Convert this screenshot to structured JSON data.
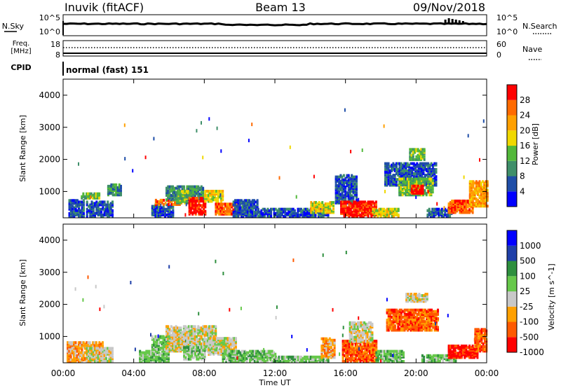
{
  "header": {
    "station": "Inuvik (fitACF)",
    "beam": "Beam 13",
    "date": "09/Nov/2018"
  },
  "colors": {
    "power": [
      "#0000ff",
      "#1f4ea8",
      "#3f8f6a",
      "#52b83a",
      "#f0d800",
      "#ffa000",
      "#ff6a00",
      "#ff0000"
    ],
    "velocity": [
      "#ff0000",
      "#ff5a00",
      "#ffa000",
      "#c8c8c8",
      "#66c84a",
      "#2e8f3e",
      "#1f3fa8",
      "#0000ff"
    ]
  },
  "panels": {
    "sky": {
      "label": "N.Sky",
      "ticks_left": [
        "10^5",
        "10^0"
      ],
      "ticks_right": [
        "10^5",
        "10^0"
      ],
      "right_label": "N.Search"
    },
    "freq": {
      "label_line1": "Freq.",
      "label_line2": "[MHz]",
      "ticks_left": [
        "18",
        "8"
      ],
      "ticks_right": [
        "60",
        "0"
      ],
      "right_label": "Nave"
    },
    "cpid": {
      "label": "CPID",
      "text": "normal (fast) 151"
    }
  },
  "x_axis": {
    "ticks": [
      "00:00",
      "04:00",
      "08:00",
      "12:00",
      "16:00",
      "20:00",
      "00:00"
    ],
    "label": "Time UT"
  },
  "chart_data": [
    {
      "type": "heatmap",
      "name": "power",
      "ylabel": "Slant Range [km]",
      "yticks": [
        "4000",
        "3000",
        "2000",
        "1000"
      ],
      "ylim": [
        180,
        4500
      ],
      "xlim_hours": [
        0,
        24
      ],
      "colorbar_label": "Power [dB]",
      "colorbar_ticks": [
        "28",
        "24",
        "20",
        "16",
        "12",
        "8",
        "4"
      ],
      "colorbar_range": [
        0,
        32
      ],
      "regions": [
        {
          "t0": 0.3,
          "t1": 1.2,
          "r0": 180,
          "r1": 700,
          "level": 1
        },
        {
          "t0": 1.0,
          "t1": 2.0,
          "r0": 750,
          "r1": 920,
          "level": 3
        },
        {
          "t0": 1.3,
          "t1": 2.8,
          "r0": 180,
          "r1": 650,
          "level": 1
        },
        {
          "t0": 2.5,
          "t1": 3.3,
          "r0": 850,
          "r1": 1200,
          "level": 2
        },
        {
          "t0": 5.0,
          "t1": 6.2,
          "r0": 180,
          "r1": 550,
          "level": 1
        },
        {
          "t0": 5.2,
          "t1": 6.7,
          "r0": 550,
          "r1": 700,
          "level": 6
        },
        {
          "t0": 5.8,
          "t1": 7.9,
          "r0": 700,
          "r1": 1150,
          "level": 2
        },
        {
          "t0": 6.4,
          "t1": 7.3,
          "r0": 600,
          "r1": 1000,
          "level": 3
        },
        {
          "t0": 7.1,
          "t1": 8.0,
          "r0": 250,
          "r1": 750,
          "level": 7
        },
        {
          "t0": 8.0,
          "t1": 9.0,
          "r0": 650,
          "r1": 1000,
          "level": 4
        },
        {
          "t0": 8.6,
          "t1": 10.0,
          "r0": 250,
          "r1": 600,
          "level": 6
        },
        {
          "t0": 9.6,
          "t1": 11.0,
          "r0": 180,
          "r1": 700,
          "level": 1
        },
        {
          "t0": 11.0,
          "t1": 15.0,
          "r0": 180,
          "r1": 450,
          "level": 1
        },
        {
          "t0": 14.0,
          "t1": 15.3,
          "r0": 300,
          "r1": 650,
          "level": 4
        },
        {
          "t0": 15.4,
          "t1": 16.6,
          "r0": 600,
          "r1": 1500,
          "level": 1
        },
        {
          "t0": 15.7,
          "t1": 17.7,
          "r0": 180,
          "r1": 650,
          "level": 7
        },
        {
          "t0": 17.5,
          "t1": 19.0,
          "r0": 180,
          "r1": 450,
          "level": 4
        },
        {
          "t0": 18.2,
          "t1": 21.1,
          "r0": 1150,
          "r1": 1850,
          "level": 1
        },
        {
          "t0": 19.0,
          "t1": 20.9,
          "r0": 850,
          "r1": 1350,
          "level": 3
        },
        {
          "t0": 19.7,
          "t1": 20.4,
          "r0": 900,
          "r1": 1150,
          "level": 7
        },
        {
          "t0": 19.6,
          "t1": 20.5,
          "r0": 1950,
          "r1": 2300,
          "level": 3
        },
        {
          "t0": 20.6,
          "t1": 22.0,
          "r0": 180,
          "r1": 420,
          "level": 1
        },
        {
          "t0": 21.8,
          "t1": 23.2,
          "r0": 300,
          "r1": 700,
          "level": 6
        },
        {
          "t0": 23.0,
          "t1": 24.0,
          "r0": 500,
          "r1": 1300,
          "level": 5
        }
      ]
    },
    {
      "type": "heatmap",
      "name": "velocity",
      "ylabel": "Slant Range [km]",
      "yticks": [
        "4000",
        "3000",
        "2000",
        "1000"
      ],
      "ylim": [
        180,
        4500
      ],
      "xlim_hours": [
        0,
        24
      ],
      "colorbar_label": "Velocity [m s^-1]",
      "colorbar_ticks": [
        "1000",
        "500",
        "100",
        "25",
        "-25",
        "-100",
        "-500",
        "-1000"
      ],
      "regions": [
        {
          "t0": 0.2,
          "t1": 2.2,
          "r0": 180,
          "r1": 800,
          "level": 2
        },
        {
          "t0": 1.3,
          "t1": 2.8,
          "r0": 180,
          "r1": 600,
          "level": 3
        },
        {
          "t0": 4.3,
          "t1": 6.0,
          "r0": 180,
          "r1": 500,
          "level": 4
        },
        {
          "t0": 5.0,
          "t1": 7.0,
          "r0": 550,
          "r1": 1000,
          "level": 4
        },
        {
          "t0": 5.8,
          "t1": 8.6,
          "r0": 500,
          "r1": 1300,
          "level": 3
        },
        {
          "t0": 6.8,
          "t1": 8.0,
          "r0": 250,
          "r1": 650,
          "level": 4
        },
        {
          "t0": 8.2,
          "t1": 9.8,
          "r0": 400,
          "r1": 900,
          "level": 3
        },
        {
          "t0": 9.0,
          "t1": 12.0,
          "r0": 180,
          "r1": 500,
          "level": 4
        },
        {
          "t0": 12.0,
          "t1": 15.0,
          "r0": 180,
          "r1": 350,
          "level": 4
        },
        {
          "t0": 14.6,
          "t1": 15.4,
          "r0": 300,
          "r1": 900,
          "level": 2
        },
        {
          "t0": 15.8,
          "t1": 17.7,
          "r0": 180,
          "r1": 850,
          "level": 1
        },
        {
          "t0": 17.7,
          "t1": 19.3,
          "r0": 180,
          "r1": 500,
          "level": 4
        },
        {
          "t0": 16.2,
          "t1": 17.5,
          "r0": 800,
          "r1": 1400,
          "level": 3
        },
        {
          "t0": 18.3,
          "t1": 21.2,
          "r0": 1150,
          "r1": 1800,
          "level": 1
        },
        {
          "t0": 19.4,
          "t1": 20.6,
          "r0": 2050,
          "r1": 2300,
          "level": 3
        },
        {
          "t0": 20.3,
          "t1": 22.2,
          "r0": 180,
          "r1": 400,
          "level": 4
        },
        {
          "t0": 21.8,
          "t1": 23.5,
          "r0": 300,
          "r1": 700,
          "level": 0
        },
        {
          "t0": 23.3,
          "t1": 24.0,
          "r0": 500,
          "r1": 1200,
          "level": 1
        }
      ]
    }
  ]
}
